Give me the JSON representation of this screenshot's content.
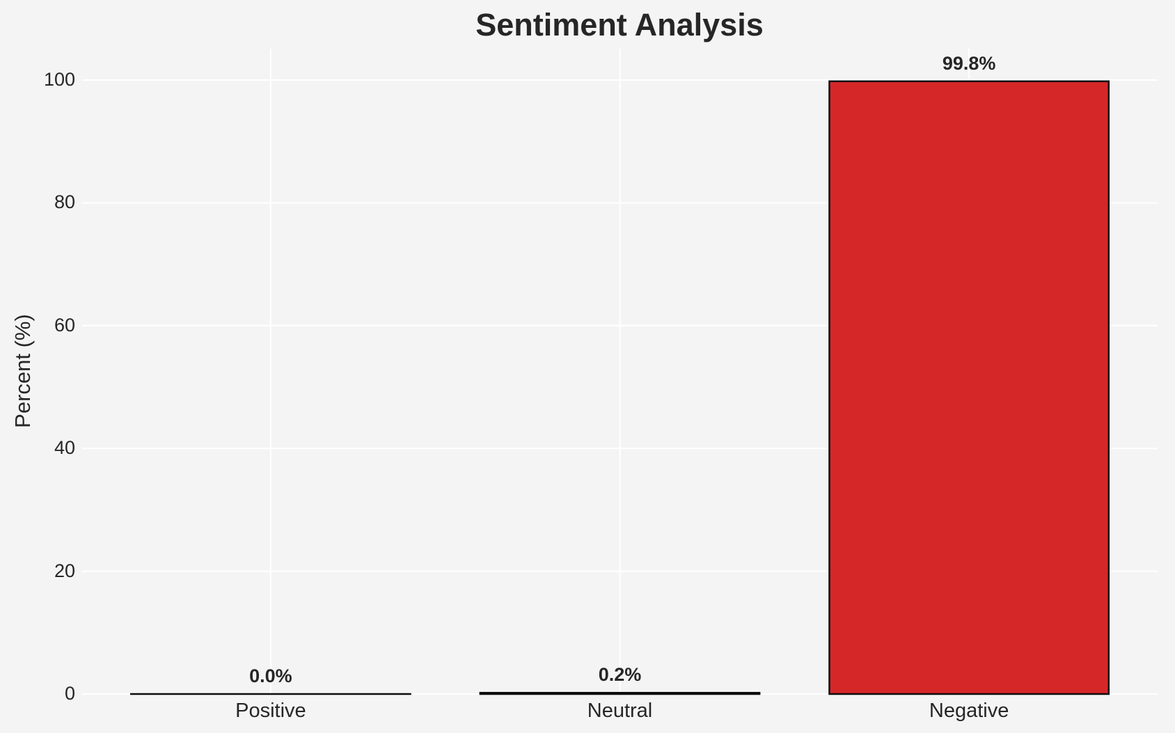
{
  "chart_data": {
    "type": "bar",
    "title": "Sentiment Analysis",
    "xlabel": "",
    "ylabel": "Percent (%)",
    "categories": [
      "Positive",
      "Neutral",
      "Negative"
    ],
    "values": [
      0.0,
      0.2,
      99.8
    ],
    "bar_labels": [
      "0.0%",
      "0.2%",
      "99.8%"
    ],
    "bar_colors": [
      null,
      null,
      "#d62728"
    ],
    "bar_edge_color": "#0d0d0d",
    "yticks": [
      0,
      20,
      40,
      60,
      80,
      100
    ],
    "ylim": [
      0,
      105
    ],
    "grid": true,
    "legend": false
  },
  "style": {
    "background_color": "#f4f4f4",
    "grid_color": "#ffffff",
    "text_color": "#262626",
    "negative_bar_color": "#d62728"
  }
}
